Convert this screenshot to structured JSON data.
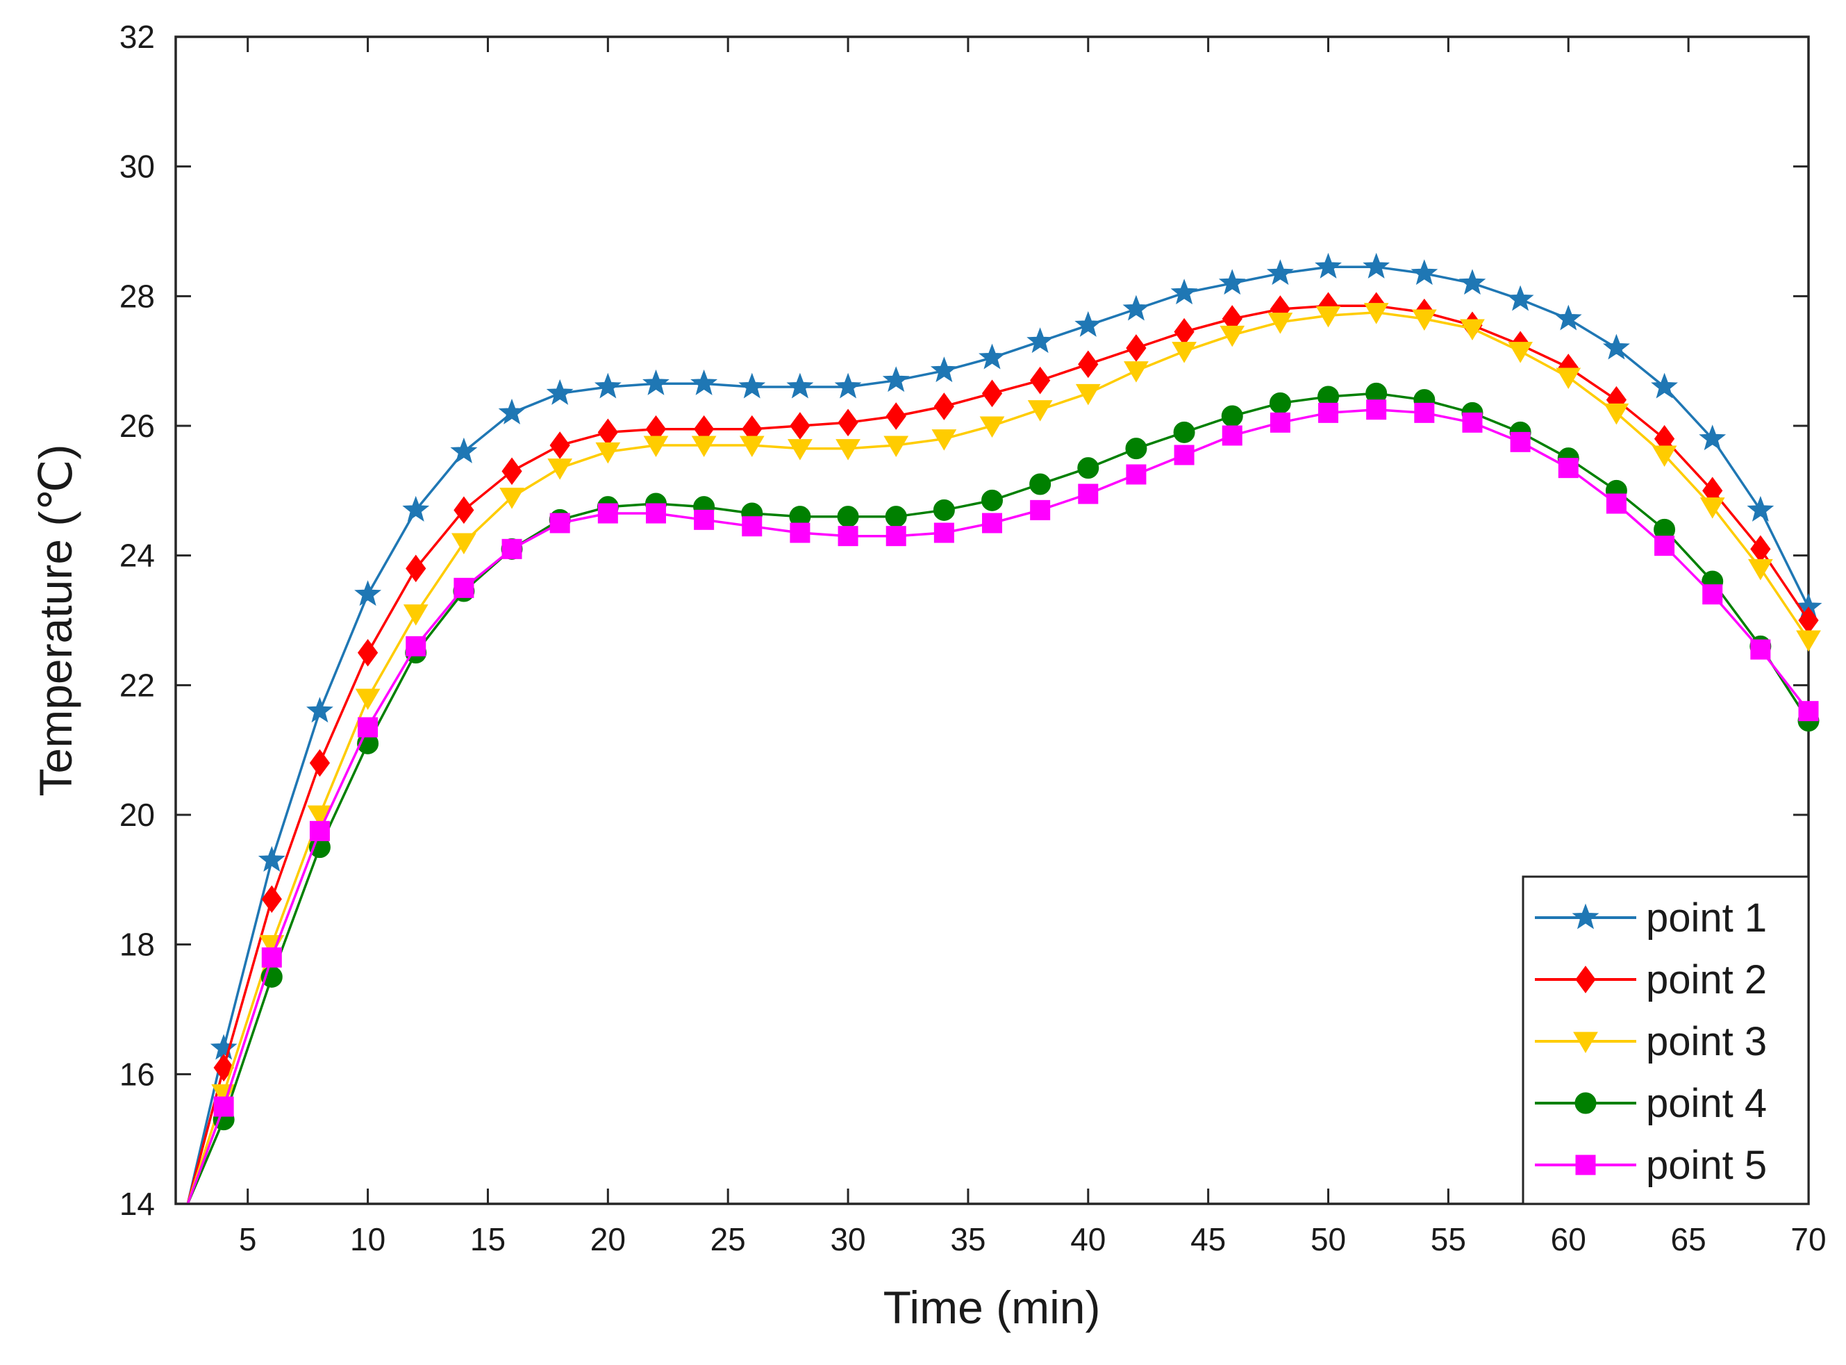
{
  "chart_data": {
    "type": "line",
    "title": "",
    "xlabel": "Time (min)",
    "ylabel": "Temperature (℃)",
    "xlim": [
      2,
      70
    ],
    "ylim": [
      14,
      32
    ],
    "xticks": [
      5,
      10,
      15,
      20,
      25,
      30,
      35,
      40,
      45,
      50,
      55,
      60,
      65,
      70
    ],
    "yticks": [
      14,
      16,
      18,
      20,
      22,
      24,
      26,
      28,
      30,
      32
    ],
    "grid": false,
    "legend_position": "bottom-right",
    "x": [
      4,
      6,
      8,
      10,
      12,
      14,
      16,
      18,
      20,
      22,
      24,
      26,
      28,
      30,
      32,
      34,
      36,
      38,
      40,
      42,
      44,
      46,
      48,
      50,
      52,
      54,
      56,
      58,
      60,
      62,
      64,
      66,
      68,
      70
    ],
    "series": [
      {
        "name": "point 1",
        "color": "#1f77b4",
        "marker": "star",
        "start": [
          2.5,
          14.0
        ],
        "values": [
          16.4,
          19.3,
          21.6,
          23.4,
          24.7,
          25.6,
          26.2,
          26.5,
          26.6,
          26.65,
          26.65,
          26.6,
          26.6,
          26.6,
          26.7,
          26.85,
          27.05,
          27.3,
          27.55,
          27.8,
          28.05,
          28.2,
          28.35,
          28.45,
          28.45,
          28.35,
          28.2,
          27.95,
          27.65,
          27.2,
          26.6,
          25.8,
          24.7,
          23.2
        ]
      },
      {
        "name": "point 2",
        "color": "#ff0000",
        "marker": "diamond",
        "start": [
          2.5,
          14.0
        ],
        "values": [
          16.1,
          18.7,
          20.8,
          22.5,
          23.8,
          24.7,
          25.3,
          25.7,
          25.9,
          25.95,
          25.95,
          25.95,
          26.0,
          26.05,
          26.15,
          26.3,
          26.5,
          26.7,
          26.95,
          27.2,
          27.45,
          27.65,
          27.8,
          27.85,
          27.85,
          27.75,
          27.55,
          27.25,
          26.9,
          26.4,
          25.8,
          25.0,
          24.1,
          23.0
        ]
      },
      {
        "name": "point 3",
        "color": "#ffcc00",
        "marker": "triangle-down",
        "start": [
          2.5,
          14.0
        ],
        "values": [
          15.7,
          18.0,
          20.0,
          21.8,
          23.1,
          24.2,
          24.9,
          25.35,
          25.6,
          25.7,
          25.7,
          25.7,
          25.65,
          25.65,
          25.7,
          25.8,
          26.0,
          26.25,
          26.5,
          26.85,
          27.15,
          27.4,
          27.6,
          27.7,
          27.75,
          27.65,
          27.5,
          27.15,
          26.75,
          26.2,
          25.55,
          24.75,
          23.8,
          22.7
        ]
      },
      {
        "name": "point 4",
        "color": "#008000",
        "marker": "circle",
        "start": [
          2.5,
          14.0
        ],
        "values": [
          15.3,
          17.5,
          19.5,
          21.1,
          22.5,
          23.45,
          24.1,
          24.55,
          24.75,
          24.8,
          24.75,
          24.65,
          24.6,
          24.6,
          24.6,
          24.7,
          24.85,
          25.1,
          25.35,
          25.65,
          25.9,
          26.15,
          26.35,
          26.45,
          26.5,
          26.4,
          26.2,
          25.9,
          25.5,
          25.0,
          24.4,
          23.6,
          22.6,
          21.45
        ]
      },
      {
        "name": "point 5",
        "color": "#ff00ff",
        "marker": "square",
        "start": [
          2.5,
          14.0
        ],
        "values": [
          15.5,
          17.8,
          19.75,
          21.35,
          22.6,
          23.5,
          24.1,
          24.5,
          24.65,
          24.65,
          24.55,
          24.45,
          24.35,
          24.3,
          24.3,
          24.35,
          24.5,
          24.7,
          24.95,
          25.25,
          25.55,
          25.85,
          26.05,
          26.2,
          26.25,
          26.2,
          26.05,
          25.75,
          25.35,
          24.8,
          24.15,
          23.4,
          22.55,
          21.6
        ]
      }
    ]
  }
}
